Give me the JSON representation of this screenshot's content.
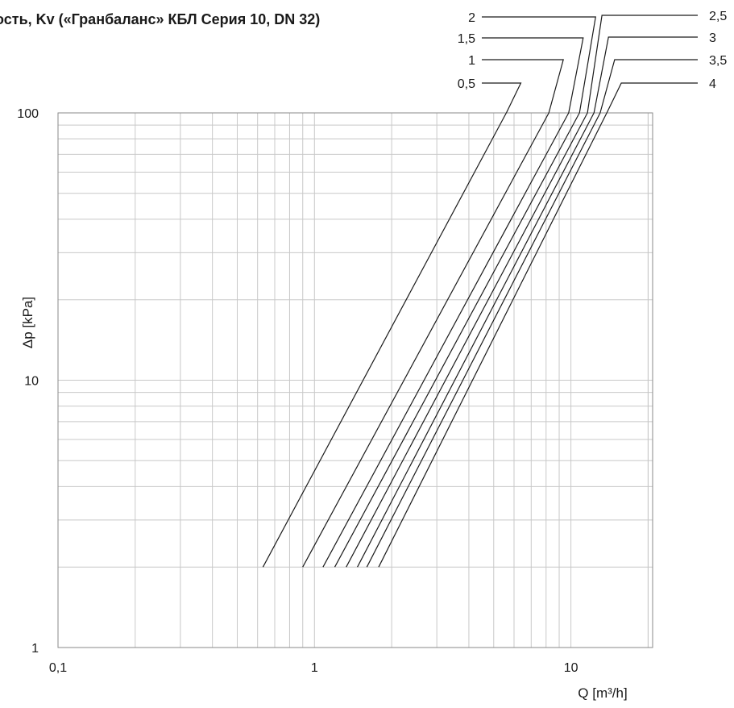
{
  "title_text": "ость, Kv («Гранбаланс» КБЛ Серия 10, DN 32)",
  "chart_data": {
    "type": "line",
    "title": "ость, Kv («Гранбаланс» КБЛ Серия 10, DN 32)",
    "xlabel": "Q  [m³/h]",
    "ylabel": "Δp  [kPa]",
    "xscale": "log",
    "yscale": "log",
    "xlim": [
      0.1,
      20
    ],
    "ylim": [
      1,
      100
    ],
    "x_tick_labels": [
      "0,1",
      "1",
      "10"
    ],
    "y_tick_labels": [
      "1",
      "10",
      "100"
    ],
    "grid": true,
    "legend": "none (series labelled by leader lines at top-right)",
    "series": [
      {
        "name": "0,5",
        "x": [
          0.63,
          5.6
        ],
        "y": [
          2,
          100
        ]
      },
      {
        "name": "1",
        "x": [
          0.9,
          8.2
        ],
        "y": [
          2,
          100
        ]
      },
      {
        "name": "1,5",
        "x": [
          1.08,
          9.8
        ],
        "y": [
          2,
          100
        ]
      },
      {
        "name": "2",
        "x": [
          1.2,
          10.8
        ],
        "y": [
          2,
          100
        ]
      },
      {
        "name": "2,5",
        "x": [
          1.33,
          11.6
        ],
        "y": [
          2,
          100
        ]
      },
      {
        "name": "3",
        "x": [
          1.47,
          12.3
        ],
        "y": [
          2,
          100
        ]
      },
      {
        "name": "3,5",
        "x": [
          1.6,
          13.0
        ],
        "y": [
          2,
          100
        ]
      },
      {
        "name": "4",
        "x": [
          1.78,
          13.8
        ],
        "y": [
          2,
          100
        ]
      }
    ]
  }
}
